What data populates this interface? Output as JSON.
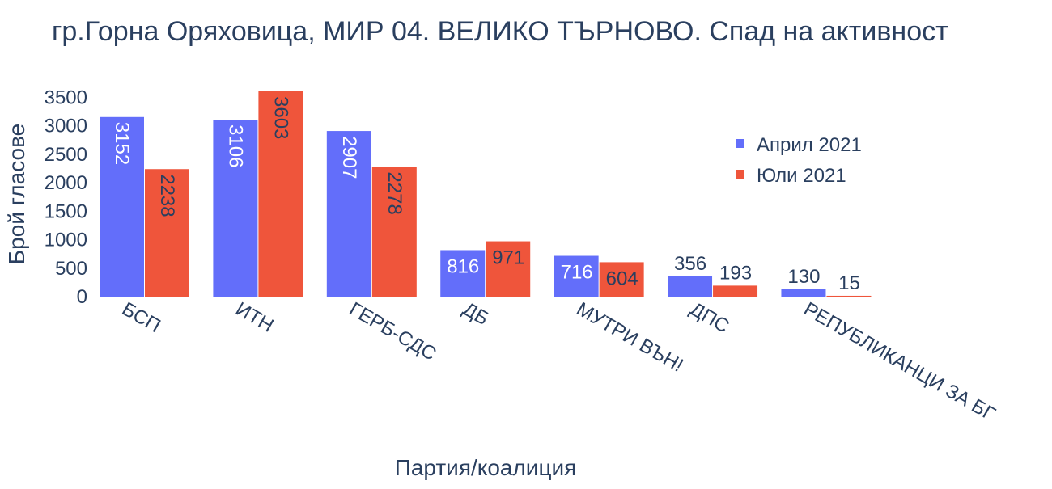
{
  "chart_data": {
    "type": "bar",
    "title": "гр.Горна Оряховица, МИР 04. ВЕЛИКО ТЪРНОВО. Спад на активност",
    "xlabel": "Партия/коалиция",
    "ylabel": "Брой гласове",
    "categories": [
      "БСП",
      "ИТН",
      "ГЕРБ-СДС",
      "ДБ",
      "МУТРИ ВЪН!",
      "ДПС",
      "РЕПУБЛИКАНЦИ ЗА БГ"
    ],
    "series": [
      {
        "name": "Април 2021",
        "color": "#636efa",
        "values": [
          3152,
          3106,
          2907,
          816,
          716,
          356,
          130
        ]
      },
      {
        "name": "Юли 2021",
        "color": "#ef553b",
        "values": [
          2238,
          3603,
          2278,
          971,
          604,
          193,
          15
        ]
      }
    ],
    "yticks": [
      "0",
      "500",
      "1000",
      "1500",
      "2000",
      "2500",
      "3000",
      "3500"
    ],
    "ylim": [
      0,
      3603
    ],
    "grid": false,
    "legend": "top-right"
  }
}
